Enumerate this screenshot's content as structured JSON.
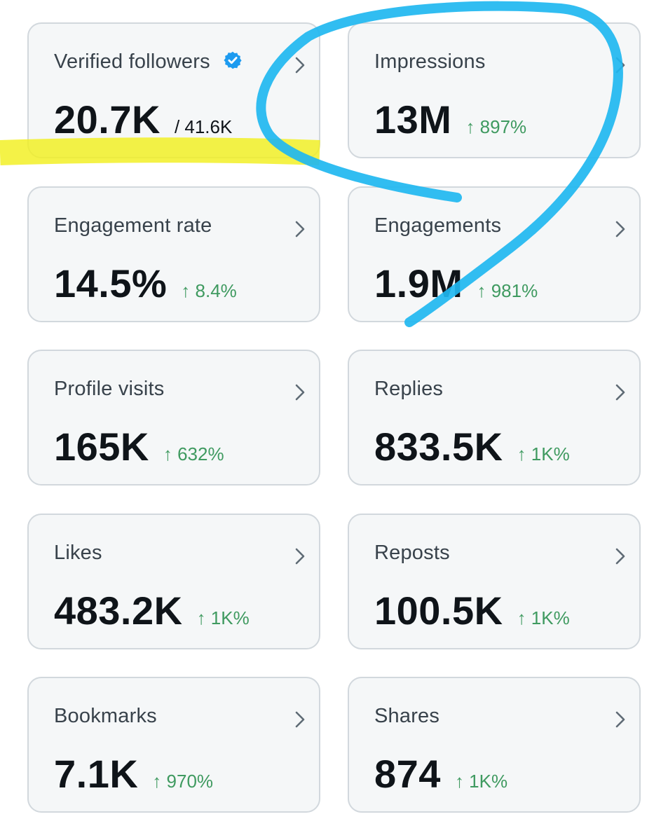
{
  "cards": [
    {
      "title": "Verified followers",
      "value": "20.7K",
      "total": "/ 41.6K",
      "verified_icon": "verified-badge-icon",
      "badge_color": "#1d9bf0"
    },
    {
      "title": "Impressions",
      "value": "13M",
      "change": "↑ 897%"
    },
    {
      "title": "Engagement rate",
      "value": "14.5%",
      "change": "↑ 8.4%"
    },
    {
      "title": "Engagements",
      "value": "1.9M",
      "change": "↑ 981%"
    },
    {
      "title": "Profile visits",
      "value": "165K",
      "change": "↑ 632%"
    },
    {
      "title": "Replies",
      "value": "833.5K",
      "change": "↑ 1K%"
    },
    {
      "title": "Likes",
      "value": "483.2K",
      "change": "↑ 1K%"
    },
    {
      "title": "Reposts",
      "value": "100.5K",
      "change": "↑ 1K%"
    },
    {
      "title": "Bookmarks",
      "value": "7.1K",
      "change": "↑ 970%"
    },
    {
      "title": "Shares",
      "value": "874",
      "change": "↑ 1K%"
    }
  ],
  "icons": {
    "chevron": "chevron-right-icon"
  },
  "colors": {
    "positive_change": "#3f9a60",
    "card_background": "#f5f7f8",
    "card_border": "#d2d8dd",
    "highlight_yellow": "#f2ef1f",
    "annotation_blue": "#1fb7f0"
  }
}
